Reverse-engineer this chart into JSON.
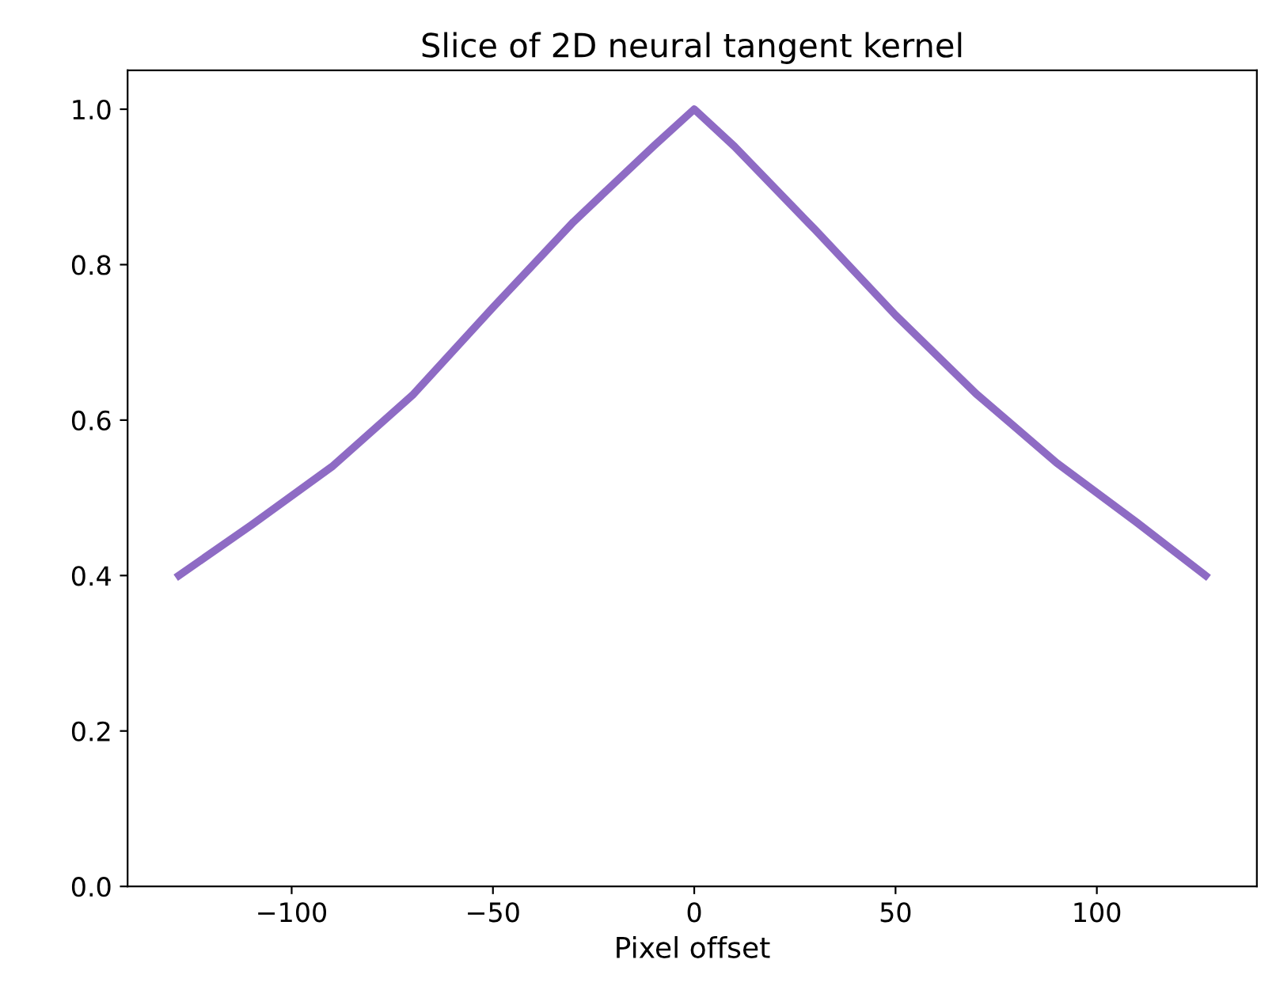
{
  "chart_data": {
    "type": "line",
    "title": "Slice of 2D neural tangent kernel",
    "xlabel": "Pixel offset",
    "x": [
      -128,
      -110,
      -90,
      -70,
      -50,
      -30,
      -10,
      0,
      10,
      30,
      50,
      70,
      90,
      110,
      127
    ],
    "series": [
      {
        "color": "#8e6bc4",
        "values": [
          0.4,
          0.465,
          0.54,
          0.632,
          0.745,
          0.855,
          0.953,
          1.0,
          0.952,
          0.845,
          0.735,
          0.634,
          0.545,
          0.468,
          0.4
        ]
      }
    ],
    "xlim": [
      -140.75,
      139.75
    ],
    "ylim": [
      0,
      1.05
    ],
    "xticks": [
      {
        "value": -100,
        "label": "−100"
      },
      {
        "value": -50,
        "label": "−50"
      },
      0,
      50,
      100
    ],
    "yticks": [
      {
        "value": 0,
        "label": "0.0"
      },
      {
        "value": 0.2,
        "label": "0.2"
      },
      {
        "value": 0.4,
        "label": "0.4"
      },
      {
        "value": 0.6,
        "label": "0.6"
      },
      {
        "value": 0.8,
        "label": "0.8"
      },
      {
        "value": 1.0,
        "label": "1.0"
      }
    ],
    "grid": false
  }
}
